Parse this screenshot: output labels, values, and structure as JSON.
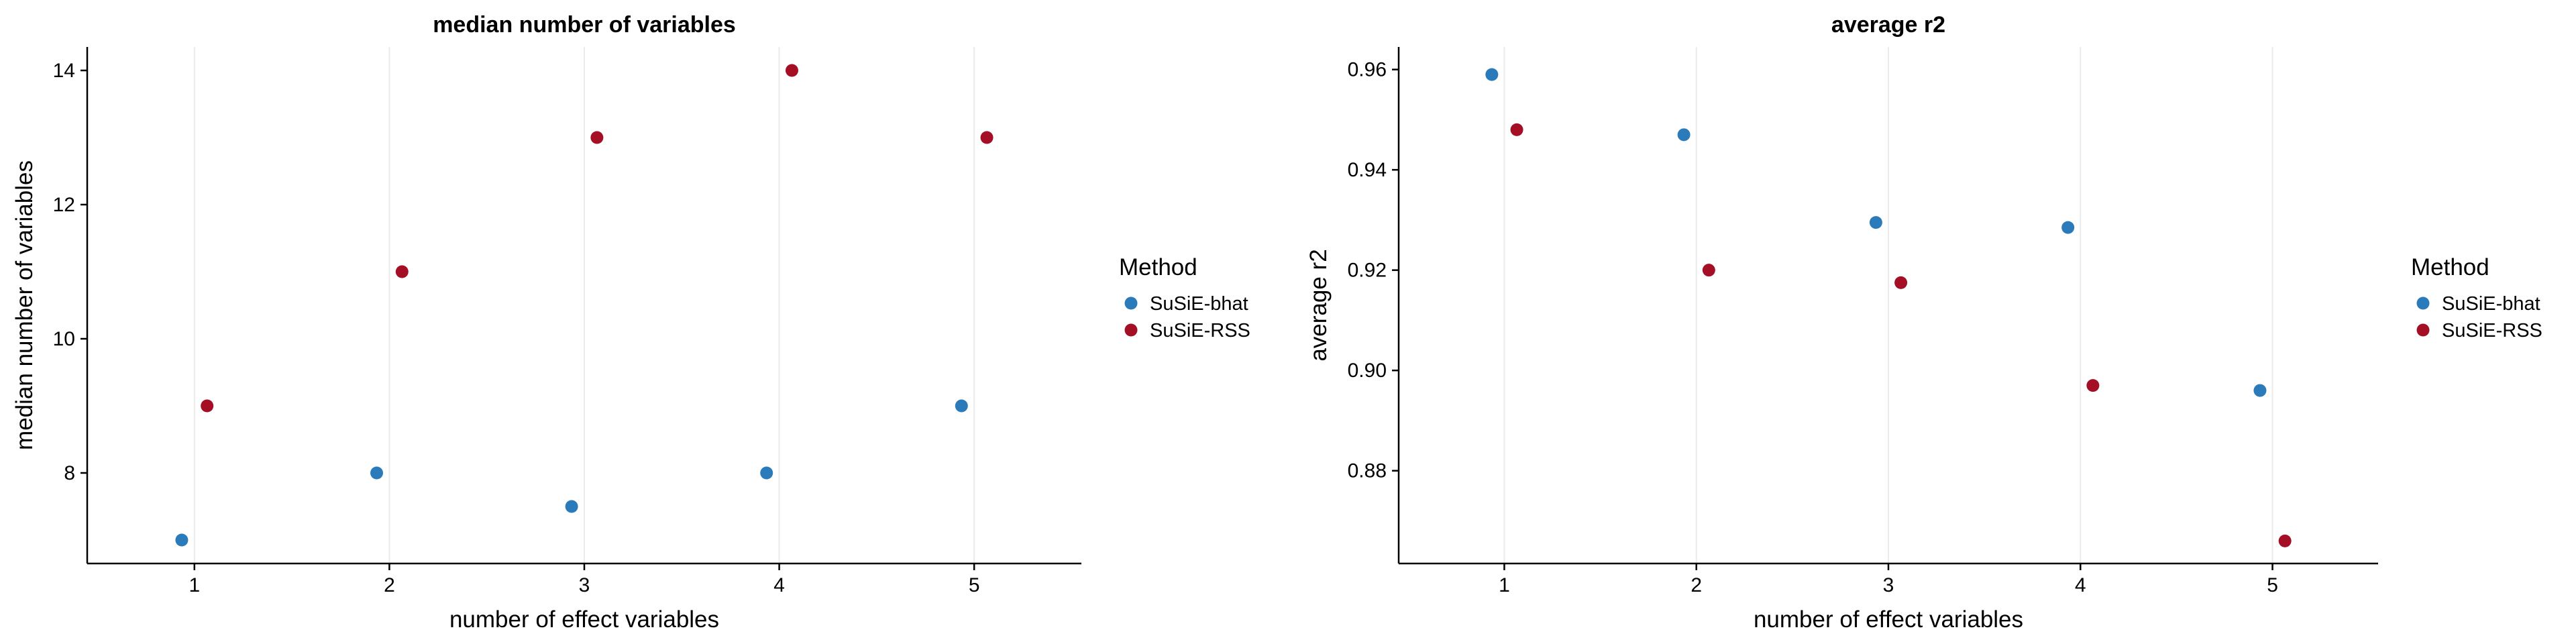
{
  "colors": {
    "SuSiE-bhat": "#2b7bba",
    "SuSiE-RSS": "#a50f26",
    "axis": "#000000",
    "grid": "#ebebeb"
  },
  "chart_data": [
    {
      "type": "scatter",
      "title": "median number of variables",
      "xlabel": "number of effect variables",
      "ylabel": "median number of variables",
      "x_ticks": [
        "1",
        "2",
        "3",
        "4",
        "5"
      ],
      "y_ticks": [
        "8",
        "10",
        "12",
        "14"
      ],
      "xlim": [
        0.45,
        5.55
      ],
      "ylim": [
        6.65,
        14.35
      ],
      "grid": "vertical-major-only",
      "legend": {
        "title": "Method",
        "placement": "right",
        "entries": [
          "SuSiE-bhat",
          "SuSiE-RSS"
        ]
      },
      "series": [
        {
          "name": "SuSiE-bhat",
          "x": [
            1,
            2,
            3,
            4,
            5
          ],
          "y": [
            7,
            8,
            7.5,
            8,
            9
          ]
        },
        {
          "name": "SuSiE-RSS",
          "x": [
            1,
            2,
            3,
            4,
            5
          ],
          "y": [
            9,
            11,
            13,
            14,
            13
          ]
        }
      ]
    },
    {
      "type": "scatter",
      "title": "average r2",
      "xlabel": "number of effect variables",
      "ylabel": "average r2",
      "x_ticks": [
        "1",
        "2",
        "3",
        "4",
        "5"
      ],
      "y_ticks": [
        "0.88",
        "0.90",
        "0.92",
        "0.94",
        "0.96"
      ],
      "xlim": [
        0.45,
        5.55
      ],
      "ylim": [
        0.8615,
        0.9645
      ],
      "grid": "vertical-major-only",
      "legend": {
        "title": "Method",
        "placement": "right",
        "entries": [
          "SuSiE-bhat",
          "SuSiE-RSS"
        ]
      },
      "series": [
        {
          "name": "SuSiE-bhat",
          "x": [
            1,
            2,
            3,
            4,
            5
          ],
          "y": [
            0.959,
            0.947,
            0.9295,
            0.9285,
            0.896
          ]
        },
        {
          "name": "SuSiE-RSS",
          "x": [
            1,
            2,
            3,
            4,
            5
          ],
          "y": [
            0.948,
            0.92,
            0.9175,
            0.897,
            0.866
          ]
        }
      ]
    }
  ]
}
